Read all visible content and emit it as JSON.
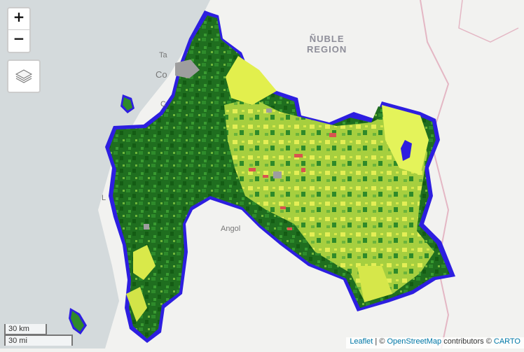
{
  "map": {
    "region_label_line1": "ÑUBLE",
    "region_label_line2": "REGION",
    "city_angol": "Angol",
    "city_talcahuano_fragment": "Ta",
    "city_concepcion_fragment": "Co",
    "city_coronel_fragment": "C",
    "city_lebu_fragment": "L"
  },
  "controls": {
    "zoom_in": "+",
    "zoom_out": "−",
    "layers_icon": "layers-icon"
  },
  "scale": {
    "km": "30 km",
    "mi": "30 mi"
  },
  "attribution": {
    "leaflet": "Leaflet",
    "sep1": " | © ",
    "osm": "OpenStreetMap",
    "contributors": " contributors © ",
    "carto": "CARTO"
  },
  "colors": {
    "ocean": "#d4dadc",
    "land": "#f2f2f0",
    "boundary": "#2d1ee0",
    "dense_forest": "#1d6b1d",
    "forest": "#2f8a2a",
    "light_vegetation": "#8cc63f",
    "sparse": "#e2ef4d",
    "degraded": "#d9534f",
    "urban": "#9e9e9e",
    "border_line": "#e4b7c4"
  }
}
